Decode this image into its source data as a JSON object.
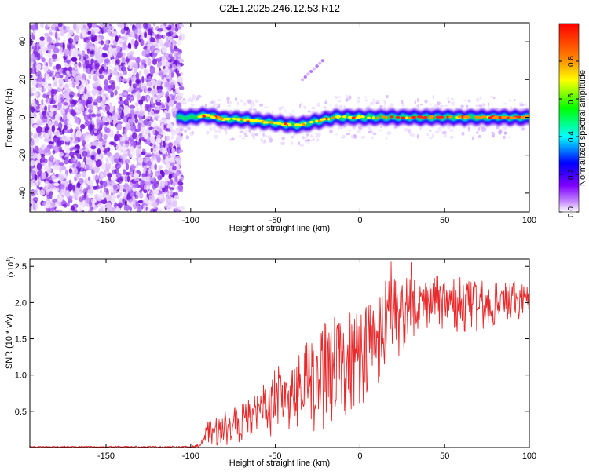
{
  "title": "C2E1.2025.246.12.53.R12",
  "chart_data": [
    {
      "type": "heatmap",
      "title": "C2E1.2025.246.12.53.R12",
      "xlabel": "Height of straight line (km)",
      "ylabel": "Frequency (Hz)",
      "xlim": [
        -195,
        100
      ],
      "ylim": [
        -50,
        50
      ],
      "x_ticks": [
        -150,
        -100,
        -50,
        0,
        50,
        100
      ],
      "y_ticks": [
        -40,
        -20,
        0,
        20,
        40
      ],
      "noise_region_x": [
        -195,
        -107
      ],
      "signal_start_x": -108,
      "ridge_centerline_hz": [
        {
          "x": -108,
          "y": 0
        },
        {
          "x": -100,
          "y": 0
        },
        {
          "x": -90,
          "y": 1
        },
        {
          "x": -80,
          "y": -1
        },
        {
          "x": -70,
          "y": -1
        },
        {
          "x": -60,
          "y": -2
        },
        {
          "x": -50,
          "y": -3
        },
        {
          "x": -40,
          "y": -4
        },
        {
          "x": -35,
          "y": -4
        },
        {
          "x": -25,
          "y": -2
        },
        {
          "x": -15,
          "y": 0
        },
        {
          "x": 0,
          "y": 0
        },
        {
          "x": 20,
          "y": 0
        },
        {
          "x": 50,
          "y": 0
        },
        {
          "x": 100,
          "y": 0
        }
      ],
      "artifact_streak": [
        {
          "x": -34,
          "y": 20
        },
        {
          "x": -22,
          "y": 30
        }
      ],
      "colorbar": {
        "label": "Normalized spectral amplitude",
        "range": [
          0.0,
          1.0
        ],
        "ticks": [
          0.0,
          0.2,
          0.4,
          0.6,
          0.8
        ],
        "tick_labels": [
          "0.0",
          "0.2",
          "0.4",
          "0.6",
          "0.8"
        ],
        "colors": [
          "#ffffff",
          "#8000ff",
          "#0000ff",
          "#00ffff",
          "#00ff00",
          "#ffff00",
          "#ff8000",
          "#ff0000"
        ]
      }
    },
    {
      "type": "line",
      "xlabel": "Height of straight line (km)",
      "ylabel": "SNR (10 * v/v)",
      "y_multiplier": "(x10",
      "y_multiplier_exp": "4",
      "xlim": [
        -195,
        100
      ],
      "ylim": [
        0,
        2.6
      ],
      "x_ticks": [
        -150,
        -100,
        -50,
        0,
        50,
        100
      ],
      "y_ticks": [
        0.5,
        1.0,
        1.5,
        2.0,
        2.5
      ],
      "y_tick_labels": [
        "0.5",
        "1.0",
        "1.5",
        "2.0",
        "2.5"
      ],
      "color": "#e8282a",
      "envelope": [
        {
          "x": -195,
          "low": 0.0,
          "high": 0.02
        },
        {
          "x": -100,
          "low": 0.0,
          "high": 0.02
        },
        {
          "x": -95,
          "low": 0.0,
          "high": 0.05
        },
        {
          "x": -90,
          "low": 0.0,
          "high": 0.35
        },
        {
          "x": -80,
          "low": 0.02,
          "high": 0.5
        },
        {
          "x": -70,
          "low": 0.05,
          "high": 0.6
        },
        {
          "x": -60,
          "low": 0.1,
          "high": 0.9
        },
        {
          "x": -50,
          "low": 0.15,
          "high": 1.15
        },
        {
          "x": -40,
          "low": 0.15,
          "high": 1.35
        },
        {
          "x": -30,
          "low": 0.15,
          "high": 1.55
        },
        {
          "x": -20,
          "low": 0.2,
          "high": 1.75
        },
        {
          "x": -10,
          "low": 0.3,
          "high": 1.9
        },
        {
          "x": 0,
          "low": 0.55,
          "high": 2.0
        },
        {
          "x": 10,
          "low": 0.8,
          "high": 2.2
        },
        {
          "x": 20,
          "low": 1.1,
          "high": 2.45
        },
        {
          "x": 30,
          "low": 1.5,
          "high": 2.4
        },
        {
          "x": 40,
          "low": 1.6,
          "high": 2.4
        },
        {
          "x": 50,
          "low": 1.65,
          "high": 2.35
        },
        {
          "x": 60,
          "low": 1.55,
          "high": 2.35
        },
        {
          "x": 70,
          "low": 1.55,
          "high": 2.3
        },
        {
          "x": 80,
          "low": 1.65,
          "high": 2.3
        },
        {
          "x": 90,
          "low": 1.75,
          "high": 2.3
        },
        {
          "x": 100,
          "low": 1.8,
          "high": 2.25
        }
      ]
    }
  ]
}
